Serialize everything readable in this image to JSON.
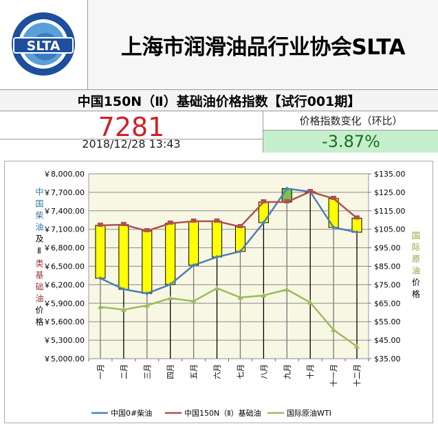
{
  "header": {
    "logo_text": "SLTA",
    "logo_ring_text": "上海市润滑油品行业协会",
    "title": "上海市润滑油品行业协会SLTA"
  },
  "index": {
    "title": "中国150N（Ⅱ）基础油价格指数【试行001期】",
    "value": "7281",
    "datetime": "2018/12/28 13:43",
    "change_label": "价格指数变化（环比）",
    "change_value": "-3.87%",
    "colors": {
      "value": "#d0202a",
      "change_bg": "#c6efce",
      "change_text": "#1e6b1e"
    }
  },
  "chart_data": {
    "type": "line",
    "categories": [
      "一月",
      "二月",
      "三月",
      "四月",
      "五月",
      "六月",
      "七月",
      "八月",
      "九月",
      "十月",
      "十一月",
      "十二月"
    ],
    "left_axis": {
      "label_parts": [
        "中国柴油",
        "及Ⅱ",
        "类基础油",
        "价格"
      ],
      "range": [
        5000,
        8000
      ],
      "ticks": [
        "￥5,000.00",
        "￥5,300.00",
        "￥5,600.00",
        "￥5,900.00",
        "￥6,200.00",
        "￥6,500.00",
        "￥6,800.00",
        "￥7,100.00",
        "￥7,400.00",
        "￥7,700.00",
        "￥8,000.00"
      ]
    },
    "right_axis": {
      "label_parts": [
        "国际原油",
        "价格"
      ],
      "range": [
        35,
        135
      ],
      "ticks": [
        "$35.00",
        "$45.00",
        "$55.00",
        "$65.00",
        "$75.00",
        "$85.00",
        "$95.00",
        "$105.00",
        "$115.00",
        "$125.00",
        "$135.00"
      ]
    },
    "grid": true,
    "legend_position": "bottom",
    "series": [
      {
        "name": "中国0#柴油",
        "axis": "left",
        "color": "#4a7fb5",
        "marker": "diamond",
        "values": [
          6305,
          6126,
          6059,
          6204,
          6517,
          6650,
          6740,
          7208,
          7760,
          7710,
          7130,
          7052
        ]
      },
      {
        "name": "中国150N（Ⅱ）基础油",
        "axis": "left",
        "color": "#b05050",
        "marker": "square",
        "values": [
          7163,
          7175,
          7074,
          7197,
          7230,
          7230,
          7141,
          7543,
          7543,
          7710,
          7599,
          7281
        ]
      },
      {
        "name": "国际原油WTI",
        "axis": "right",
        "color": "#9bbb59",
        "marker": "triangle",
        "values": [
          63.0,
          61.5,
          63.8,
          67.7,
          66.1,
          73.1,
          68.1,
          69.2,
          72.4,
          65.4,
          50.6,
          41.6
        ]
      }
    ],
    "box_colors": {
      "up": "#ffff00",
      "down": "#7dbf4a"
    }
  }
}
